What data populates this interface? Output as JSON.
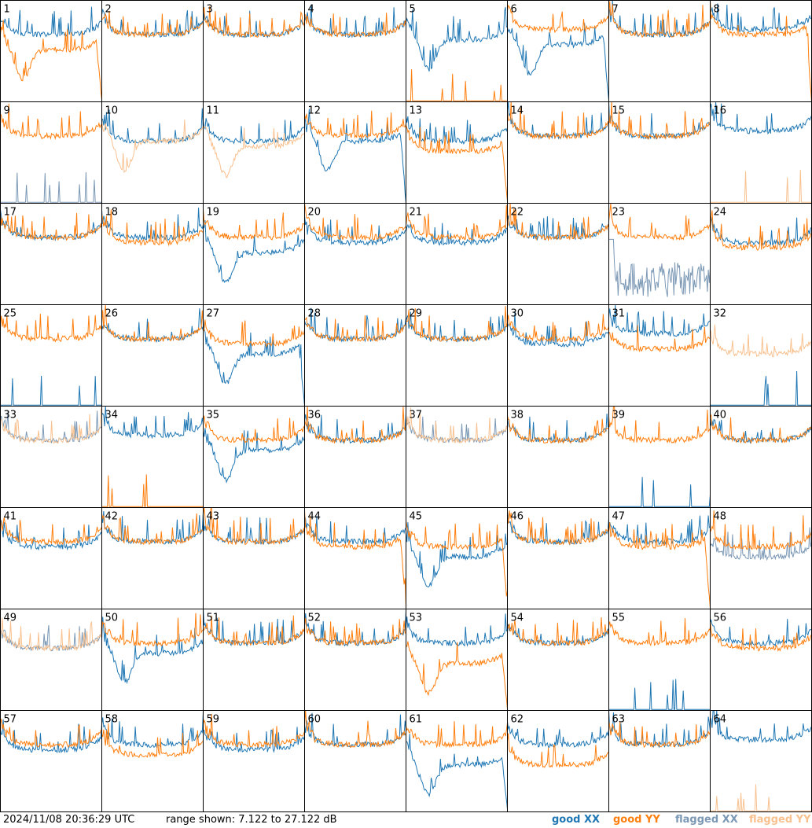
{
  "footer": {
    "timestamp": "2024/11/08 20:36:29 UTC",
    "range_text": "range shown: 7.122 to 27.122 dB"
  },
  "legend": [
    {
      "key": "good_xx",
      "label": "good XX",
      "color": "#1f77b4"
    },
    {
      "key": "good_yy",
      "label": "good YY",
      "color": "#ff7f0e"
    },
    {
      "key": "flagged_xx",
      "label": "flagged XX",
      "color": "#7b98b5"
    },
    {
      "key": "flagged_yy",
      "label": "flagged YY",
      "color": "#f8c18f"
    }
  ],
  "chart_data": {
    "type": "line",
    "title": "",
    "xlabel": "",
    "ylabel": "",
    "ylim": [
      7.122,
      27.122
    ],
    "grid": false,
    "legend_placement": "bottom-right",
    "layout": "small-multiples 8x8",
    "panels": [
      {
        "id": "1",
        "xx": {
          "level": 21,
          "flag": false
        },
        "yy": {
          "level": 18,
          "flag": false,
          "shape": "dip-then-drop"
        }
      },
      {
        "id": "2",
        "xx": {
          "level": 21,
          "flag": false
        },
        "yy": {
          "level": 21,
          "flag": false
        }
      },
      {
        "id": "3",
        "xx": {
          "level": 21,
          "flag": false
        },
        "yy": {
          "level": 21,
          "flag": false
        }
      },
      {
        "id": "4",
        "xx": {
          "level": 21,
          "flag": false
        },
        "yy": {
          "level": 21,
          "flag": false
        }
      },
      {
        "id": "5",
        "xx": {
          "level": 20,
          "flag": false,
          "shape": "dip"
        },
        "yy": {
          "level": 7.5,
          "flag": false,
          "shape": "sparse-spikes"
        }
      },
      {
        "id": "6",
        "xx": {
          "level": 19,
          "flag": false,
          "shape": "dip-then-drop"
        },
        "yy": {
          "level": 22,
          "flag": false
        }
      },
      {
        "id": "7",
        "xx": {
          "level": 21,
          "flag": false
        },
        "yy": {
          "level": 21,
          "flag": false
        }
      },
      {
        "id": "8",
        "xx": {
          "level": 22,
          "flag": false
        },
        "yy": {
          "level": 21,
          "flag": false,
          "shape": "drop-at-end"
        }
      },
      {
        "id": "9",
        "xx": {
          "level": 7.5,
          "flag": true,
          "shape": "sparse-spikes"
        },
        "yy": {
          "level": 21,
          "flag": false
        }
      },
      {
        "id": "10",
        "xx": {
          "level": 20,
          "flag": false
        },
        "yy": {
          "level": 20,
          "flag": true,
          "shape": "dip"
        }
      },
      {
        "id": "11",
        "xx": {
          "level": 20,
          "flag": false
        },
        "yy": {
          "level": 19,
          "flag": true,
          "shape": "dip"
        }
      },
      {
        "id": "12",
        "xx": {
          "level": 20,
          "flag": false,
          "shape": "dip-then-drop"
        },
        "yy": {
          "level": 21,
          "flag": false
        }
      },
      {
        "id": "13",
        "xx": {
          "level": 20,
          "flag": false
        },
        "yy": {
          "level": 18,
          "flag": false,
          "shape": "drop-at-end"
        }
      },
      {
        "id": "14",
        "xx": {
          "level": 21,
          "flag": false
        },
        "yy": {
          "level": 21,
          "flag": false
        }
      },
      {
        "id": "15",
        "xx": {
          "level": 21,
          "flag": false
        },
        "yy": {
          "level": 21,
          "flag": false
        }
      },
      {
        "id": "16",
        "xx": {
          "level": 22,
          "flag": false
        },
        "yy": {
          "level": 7.5,
          "flag": true,
          "shape": "sparse-spikes"
        }
      },
      {
        "id": "17",
        "xx": {
          "level": 21,
          "flag": false
        },
        "yy": {
          "level": 21,
          "flag": false
        }
      },
      {
        "id": "18",
        "xx": {
          "level": 21,
          "flag": false
        },
        "yy": {
          "level": 20,
          "flag": false
        }
      },
      {
        "id": "19",
        "xx": {
          "level": 18,
          "flag": false,
          "shape": "dip"
        },
        "yy": {
          "level": 21,
          "flag": false
        }
      },
      {
        "id": "20",
        "xx": {
          "level": 20,
          "flag": false
        },
        "yy": {
          "level": 21,
          "flag": false
        }
      },
      {
        "id": "21",
        "xx": {
          "level": 20,
          "flag": false
        },
        "yy": {
          "level": 21,
          "flag": false
        }
      },
      {
        "id": "22",
        "xx": {
          "level": 21,
          "flag": false
        },
        "yy": {
          "level": 21,
          "flag": false
        }
      },
      {
        "id": "23",
        "xx": {
          "level": 12,
          "flag": true,
          "shape": "noisy-band"
        },
        "yy": {
          "level": 21,
          "flag": false
        }
      },
      {
        "id": "24",
        "xx": {
          "level": 20,
          "flag": false
        },
        "yy": {
          "level": 19,
          "flag": false
        }
      },
      {
        "id": "25",
        "xx": {
          "level": 7.5,
          "flag": false,
          "shape": "sparse-spikes"
        },
        "yy": {
          "level": 21,
          "flag": false
        }
      },
      {
        "id": "26",
        "xx": {
          "level": 21,
          "flag": false
        },
        "yy": {
          "level": 21,
          "flag": false
        }
      },
      {
        "id": "27",
        "xx": {
          "level": 18,
          "flag": false,
          "shape": "dip-then-drop"
        },
        "yy": {
          "level": 20,
          "flag": false
        }
      },
      {
        "id": "28",
        "xx": {
          "level": 21,
          "flag": false
        },
        "yy": {
          "level": 21,
          "flag": false
        }
      },
      {
        "id": "29",
        "xx": {
          "level": 21,
          "flag": false
        },
        "yy": {
          "level": 21,
          "flag": false
        }
      },
      {
        "id": "30",
        "xx": {
          "level": 20,
          "flag": false
        },
        "yy": {
          "level": 21,
          "flag": false
        }
      },
      {
        "id": "31",
        "xx": {
          "level": 22,
          "flag": false
        },
        "yy": {
          "level": 19,
          "flag": false
        }
      },
      {
        "id": "32",
        "xx": {
          "level": 7.5,
          "flag": false,
          "shape": "sparse-spikes"
        },
        "yy": {
          "level": 18,
          "flag": true
        }
      },
      {
        "id": "33",
        "xx": {
          "level": 21,
          "flag": true
        },
        "yy": {
          "level": 21,
          "flag": true
        }
      },
      {
        "id": "34",
        "xx": {
          "level": 22,
          "flag": false
        },
        "yy": {
          "level": 7.5,
          "flag": false,
          "shape": "sparse-spikes"
        }
      },
      {
        "id": "35",
        "xx": {
          "level": 19,
          "flag": false,
          "shape": "dip"
        },
        "yy": {
          "level": 21,
          "flag": false
        }
      },
      {
        "id": "36",
        "xx": {
          "level": 21,
          "flag": false
        },
        "yy": {
          "level": 21,
          "flag": false
        }
      },
      {
        "id": "37",
        "xx": {
          "level": 21,
          "flag": true
        },
        "yy": {
          "level": 21,
          "flag": true
        }
      },
      {
        "id": "38",
        "xx": {
          "level": 21,
          "flag": false
        },
        "yy": {
          "level": 21,
          "flag": false
        }
      },
      {
        "id": "39",
        "xx": {
          "level": 7.5,
          "flag": false,
          "shape": "sparse-spikes"
        },
        "yy": {
          "level": 21,
          "flag": false
        }
      },
      {
        "id": "40",
        "xx": {
          "level": 21,
          "flag": false
        },
        "yy": {
          "level": 21,
          "flag": false
        }
      },
      {
        "id": "41",
        "xx": {
          "level": 20,
          "flag": false
        },
        "yy": {
          "level": 21,
          "flag": false
        }
      },
      {
        "id": "42",
        "xx": {
          "level": 21,
          "flag": false
        },
        "yy": {
          "level": 21,
          "flag": false
        }
      },
      {
        "id": "43",
        "xx": {
          "level": 21,
          "flag": false
        },
        "yy": {
          "level": 21,
          "flag": false
        }
      },
      {
        "id": "44",
        "xx": {
          "level": 21,
          "flag": false
        },
        "yy": {
          "level": 20,
          "flag": false,
          "shape": "drop-at-end"
        }
      },
      {
        "id": "45",
        "xx": {
          "level": 18,
          "flag": false,
          "shape": "dip"
        },
        "yy": {
          "level": 20,
          "flag": false,
          "shape": "drop-at-end"
        }
      },
      {
        "id": "46",
        "xx": {
          "level": 21,
          "flag": false
        },
        "yy": {
          "level": 21,
          "flag": false
        }
      },
      {
        "id": "47",
        "xx": {
          "level": 21,
          "flag": false
        },
        "yy": {
          "level": 20,
          "flag": false,
          "shape": "drop-at-end"
        }
      },
      {
        "id": "48",
        "xx": {
          "level": 18,
          "flag": true
        },
        "yy": {
          "level": 20,
          "flag": false
        }
      },
      {
        "id": "49",
        "xx": {
          "level": 20,
          "flag": true
        },
        "yy": {
          "level": 20,
          "flag": true
        }
      },
      {
        "id": "50",
        "xx": {
          "level": 19,
          "flag": false,
          "shape": "dip"
        },
        "yy": {
          "level": 21,
          "flag": false
        }
      },
      {
        "id": "51",
        "xx": {
          "level": 21,
          "flag": false
        },
        "yy": {
          "level": 21,
          "flag": false
        }
      },
      {
        "id": "52",
        "xx": {
          "level": 21,
          "flag": false
        },
        "yy": {
          "level": 21,
          "flag": false
        }
      },
      {
        "id": "53",
        "xx": {
          "level": 21,
          "flag": false
        },
        "yy": {
          "level": 17,
          "flag": false,
          "shape": "dip-then-drop"
        }
      },
      {
        "id": "54",
        "xx": {
          "level": 21,
          "flag": false
        },
        "yy": {
          "level": 21,
          "flag": false
        }
      },
      {
        "id": "55",
        "xx": {
          "level": 9,
          "flag": false,
          "shape": "sparse-spikes"
        },
        "yy": {
          "level": 21,
          "flag": false
        }
      },
      {
        "id": "56",
        "xx": {
          "level": 21,
          "flag": false
        },
        "yy": {
          "level": 20,
          "flag": false
        }
      },
      {
        "id": "57",
        "xx": {
          "level": 20,
          "flag": false
        },
        "yy": {
          "level": 21,
          "flag": false
        }
      },
      {
        "id": "58",
        "xx": {
          "level": 21,
          "flag": false
        },
        "yy": {
          "level": 19,
          "flag": false
        }
      },
      {
        "id": "59",
        "xx": {
          "level": 20,
          "flag": false
        },
        "yy": {
          "level": 21,
          "flag": false
        }
      },
      {
        "id": "60",
        "xx": {
          "level": 21,
          "flag": false
        },
        "yy": {
          "level": 21,
          "flag": false
        }
      },
      {
        "id": "61",
        "xx": {
          "level": 17,
          "flag": false,
          "shape": "dip-then-drop"
        },
        "yy": {
          "level": 21,
          "flag": false
        }
      },
      {
        "id": "62",
        "xx": {
          "level": 21,
          "flag": false
        },
        "yy": {
          "level": 17,
          "flag": false
        }
      },
      {
        "id": "63",
        "xx": {
          "level": 21,
          "flag": false
        },
        "yy": {
          "level": 21,
          "flag": false
        }
      },
      {
        "id": "64",
        "xx": {
          "level": 22,
          "flag": false
        },
        "yy": {
          "level": 7.5,
          "flag": true,
          "shape": "sparse-spikes"
        }
      }
    ]
  }
}
